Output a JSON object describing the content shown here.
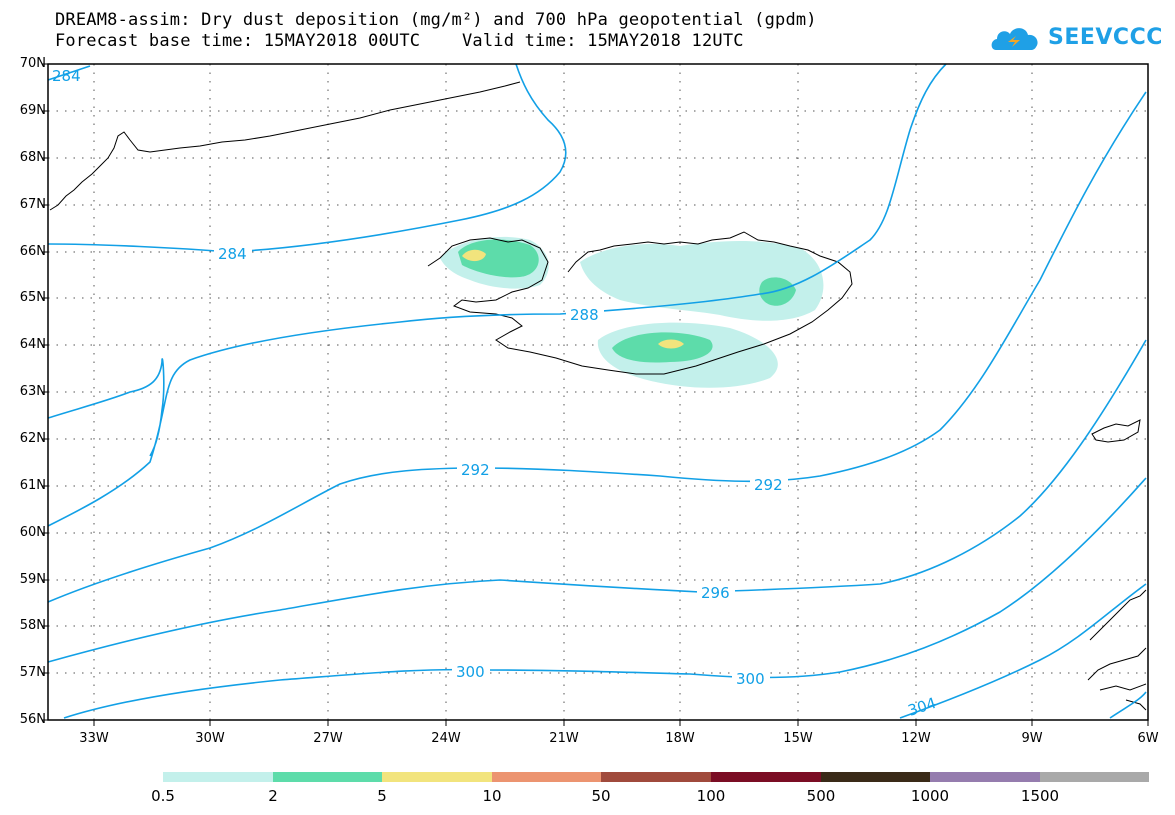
{
  "title": {
    "line1": "DREAM8-assim: Dry dust deposition (mg/m²) and 700 hPa geopotential (gpdm)",
    "line2": "Forecast base time: 15MAY2018 00UTC    Valid time: 15MAY2018 12UTC"
  },
  "logo": {
    "text": "SEEVCCC",
    "color": "#1fa0e6"
  },
  "latitudes": [
    "70N",
    "69N",
    "68N",
    "67N",
    "66N",
    "65N",
    "64N",
    "63N",
    "62N",
    "61N",
    "60N",
    "59N",
    "58N",
    "57N",
    "56N"
  ],
  "longitudes": [
    "33W",
    "30W",
    "27W",
    "24W",
    "21W",
    "18W",
    "15W",
    "12W",
    "9W",
    "6W"
  ],
  "contour_labels": [
    "284",
    "284",
    "288",
    "292",
    "292",
    "296",
    "300",
    "300",
    "304"
  ],
  "legend": {
    "colors": [
      "#c3f0eb",
      "#5ddcaa",
      "#f2e47d",
      "#ec9470",
      "#a04a3c",
      "#7b0d24",
      "#3a2a18",
      "#957cae",
      "#a9a9a9"
    ],
    "labels": [
      "0.5",
      "2",
      "5",
      "10",
      "50",
      "100",
      "500",
      "1000",
      "1500"
    ]
  },
  "colors": {
    "contour": "#12a0e6",
    "coast": "#000000",
    "grid": "#555555"
  }
}
